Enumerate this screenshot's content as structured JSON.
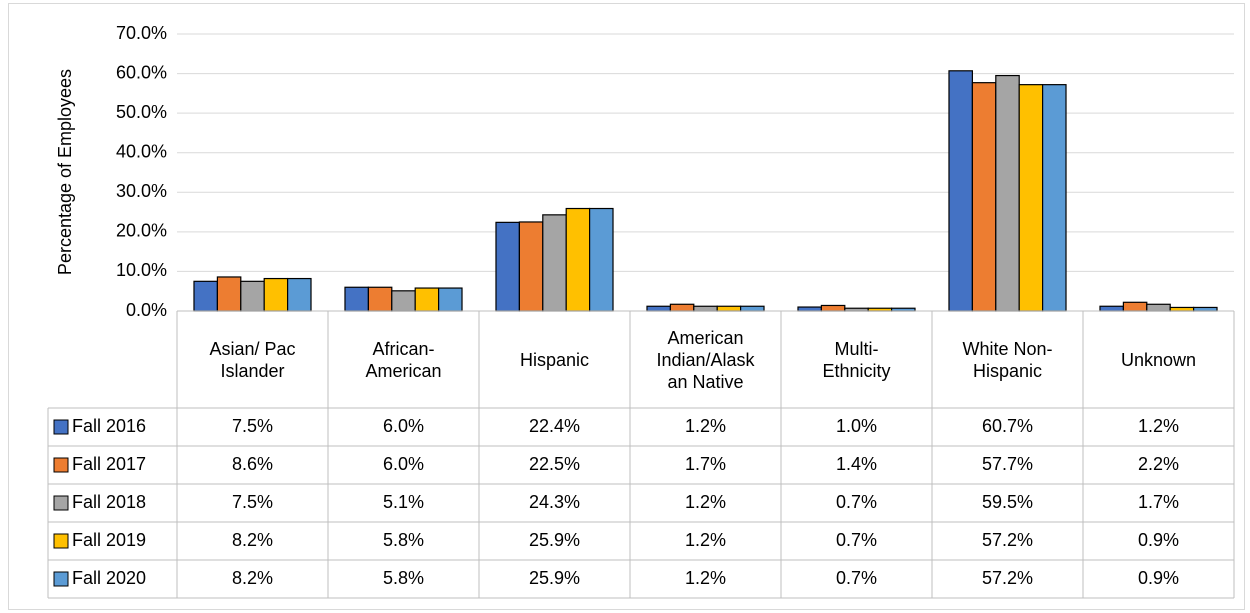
{
  "chart_data": {
    "type": "bar",
    "y_label": "Percentage of Employees",
    "categories": [
      "Asian/ Pac Islander",
      "African-American",
      "Hispanic",
      "American Indian/Alaskan Native",
      "Multi-Ethnicity",
      "White Non-Hispanic",
      "Unknown"
    ],
    "series": [
      {
        "name": "Fall 2016",
        "color": "#4472c4",
        "values": [
          7.5,
          6.0,
          22.4,
          1.2,
          1.0,
          60.7,
          1.2
        ],
        "value_labels": [
          "7.5%",
          "6.0%",
          "22.4%",
          "1.2%",
          "1.0%",
          "60.7%",
          "1.2%"
        ]
      },
      {
        "name": "Fall 2017",
        "color": "#ed7d31",
        "values": [
          8.6,
          6.0,
          22.5,
          1.7,
          1.4,
          57.7,
          2.2
        ],
        "value_labels": [
          "8.6%",
          "6.0%",
          "22.5%",
          "1.7%",
          "1.4%",
          "57.7%",
          "2.2%"
        ]
      },
      {
        "name": "Fall 2018",
        "color": "#a5a5a5",
        "values": [
          7.5,
          5.1,
          24.3,
          1.2,
          0.7,
          59.5,
          1.7
        ],
        "value_labels": [
          "7.5%",
          "5.1%",
          "24.3%",
          "1.2%",
          "0.7%",
          "59.5%",
          "1.7%"
        ]
      },
      {
        "name": "Fall 2019",
        "color": "#ffc000",
        "values": [
          8.2,
          5.8,
          25.9,
          1.2,
          0.7,
          57.2,
          0.9
        ],
        "value_labels": [
          "8.2%",
          "5.8%",
          "25.9%",
          "1.2%",
          "0.7%",
          "57.2%",
          "0.9%"
        ]
      },
      {
        "name": "Fall 2020",
        "color": "#5b9bd5",
        "values": [
          8.2,
          5.8,
          25.9,
          1.2,
          0.7,
          57.2,
          0.9
        ],
        "value_labels": [
          "8.2%",
          "5.8%",
          "25.9%",
          "1.2%",
          "0.7%",
          "57.2%",
          "0.9%"
        ]
      }
    ],
    "ylim": [
      0,
      70
    ],
    "yticks": [
      {
        "value": 0,
        "label": "0.0%"
      },
      {
        "value": 10,
        "label": "10.0%"
      },
      {
        "value": 20,
        "label": "20.0%"
      },
      {
        "value": 30,
        "label": "30.0%"
      },
      {
        "value": 40,
        "label": "40.0%"
      },
      {
        "value": 50,
        "label": "50.0%"
      },
      {
        "value": 60,
        "label": "60.0%"
      },
      {
        "value": 70,
        "label": "70.0%"
      }
    ]
  }
}
